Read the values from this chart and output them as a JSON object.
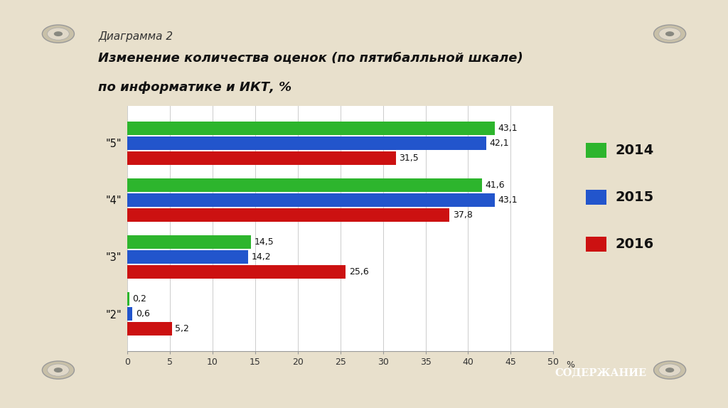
{
  "title_line1": "Диаграмма 2",
  "title_line2": "Изменение количества оценок (по пятибалльной шкале)",
  "title_line3": "по информатике и ИКТ, %",
  "categories": [
    "\"5\"",
    "\"4\"",
    "\"3\"",
    "\"2\""
  ],
  "years": [
    "2014",
    "2015",
    "2016"
  ],
  "colors": [
    "#2db52d",
    "#2255cc",
    "#cc1111"
  ],
  "data": {
    "2014": [
      43.1,
      41.6,
      14.5,
      0.2
    ],
    "2015": [
      42.1,
      43.1,
      14.2,
      0.6
    ],
    "2016": [
      31.5,
      37.8,
      25.6,
      5.2
    ]
  },
  "xlim": [
    0,
    50
  ],
  "xticks": [
    0,
    5,
    10,
    15,
    20,
    25,
    30,
    35,
    40,
    45,
    50
  ],
  "xlabel": "%",
  "bar_height": 0.26,
  "background_color": "#e8e0cc",
  "panel_color": "#ffffff",
  "bottom_button_color": "#8b1a1a",
  "bottom_button_text": "СОДЕРЖАНИЕ",
  "title1_fontsize": 11,
  "title2_fontsize": 13,
  "label_fontsize": 9,
  "axis_fontsize": 9,
  "legend_fontsize": 14
}
